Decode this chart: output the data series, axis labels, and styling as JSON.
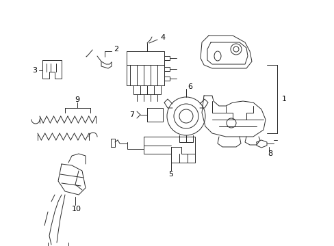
{
  "bg_color": "#ffffff",
  "line_color": "#2a2a2a",
  "text_color": "#000000",
  "fig_width": 4.89,
  "fig_height": 3.6,
  "dpi": 100,
  "lw": 0.7
}
